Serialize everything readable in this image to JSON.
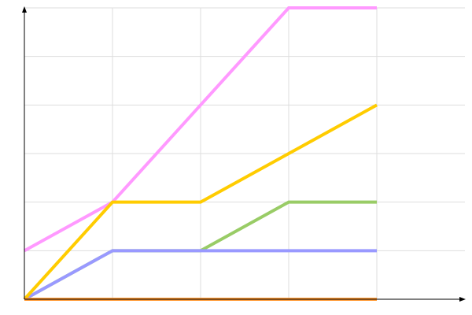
{
  "chart_data": {
    "type": "line",
    "title": "",
    "xlabel": "",
    "ylabel": "",
    "xlim": [
      0,
      5
    ],
    "ylim": [
      0,
      6
    ],
    "grid": true,
    "x": [
      0,
      1,
      2,
      3,
      4
    ],
    "series": [
      {
        "color": "#99cc66",
        "values": [
          0,
          1,
          1,
          2,
          2
        ]
      },
      {
        "color": "#9999ff",
        "values": [
          0,
          1,
          1,
          1,
          1
        ]
      },
      {
        "color": "#ff99ff",
        "values": [
          1,
          2,
          4,
          6,
          6
        ]
      },
      {
        "color": "#ffcc00",
        "values": [
          0,
          2,
          2,
          3,
          4
        ]
      },
      {
        "color": "#ff9933",
        "values": [
          0,
          0,
          0,
          0,
          0
        ]
      }
    ]
  }
}
